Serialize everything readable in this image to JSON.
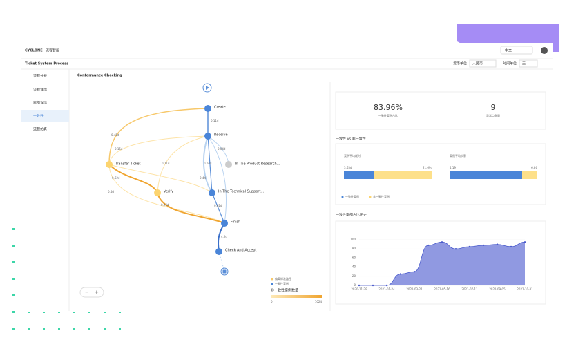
{
  "header": {
    "logo": "CYCLONE",
    "product": "流程智能",
    "language": "中文"
  },
  "toolbar": {
    "process": "Ticket System Process",
    "currency_label": "货币单位",
    "currency": "人民币",
    "time_label": "时间单位",
    "time": "天"
  },
  "sidebar": [
    "流程分析",
    "流程详情",
    "案例详情",
    "一致性",
    "流程仿真"
  ],
  "page_title": "Conformance Checking",
  "process_map": {
    "nodes": [
      "Create",
      "Receive",
      "Transfer Ticket",
      "In The Product Research...",
      "Verify",
      "In The Technical Support...",
      "Finish",
      "Check And Accept"
    ],
    "edge_labels": [
      "0.11d",
      "0.45d",
      "0.15d",
      "0.04d",
      "0.11d",
      "0.04d",
      "0.62d",
      "0.4d",
      "0.4d",
      "0.24d",
      "0.62d",
      "4.2d"
    ],
    "legend": [
      "偏离标准路径",
      "一致性案例"
    ],
    "scale_title": "非一致性案例数量",
    "scale_min": "0",
    "scale_max": "1024"
  },
  "summary": [
    {
      "value": "83.96%",
      "label": "一致性案例占比"
    },
    {
      "value": "9",
      "label": "异常点数量"
    }
  ],
  "comparison": {
    "title": "一致性 vs 非一致性",
    "metrics": [
      {
        "label": "案例平均耗时",
        "left": "3.63d",
        "right": "21.69d"
      },
      {
        "label": "案例平均步骤",
        "left": "4.19",
        "right": "6.86"
      }
    ],
    "legend": [
      "一致性案例",
      "非一致性案例"
    ]
  },
  "chart_data": {
    "type": "area",
    "title": "一致性案例占比历史",
    "categories": [
      "2020-11-29",
      null,
      "2021-01-24",
      null,
      "2021-03-21",
      null,
      "2021-05-16",
      null,
      "2021-07-11",
      null,
      "2021-09-05",
      null,
      "2021-10-31"
    ],
    "values": [
      0,
      0,
      0,
      25,
      30,
      88,
      95,
      80,
      85,
      88,
      90,
      85,
      95
    ],
    "ylim": [
      0,
      100
    ],
    "yticks": [
      0,
      20,
      40,
      60,
      80,
      100
    ],
    "color": "#7d87dc",
    "grid": true
  }
}
